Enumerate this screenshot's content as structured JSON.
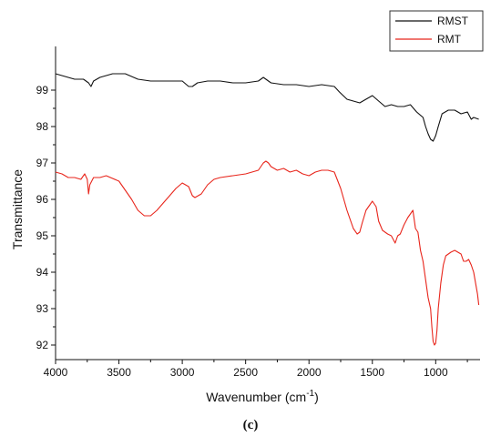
{
  "chart_data": {
    "type": "line",
    "title": "",
    "xlabel": "Wavenumber (cm",
    "xlabel_sup": "-1",
    "xlabel_close": ")",
    "ylabel": "Transmittance",
    "panel_label": "(c)",
    "xlim": [
      4000,
      650
    ],
    "x_reversed": true,
    "ylim": [
      91.6,
      100.2
    ],
    "x_ticks": [
      4000,
      3500,
      3000,
      2500,
      2000,
      1500,
      1000
    ],
    "y_ticks": [
      92,
      93,
      94,
      95,
      96,
      97,
      98,
      99
    ],
    "grid": false,
    "legend_position": "top-right",
    "series": [
      {
        "name": "RMST",
        "color": "#111111",
        "x": [
          4000,
          3900,
          3850,
          3780,
          3740,
          3720,
          3700,
          3650,
          3550,
          3450,
          3350,
          3250,
          3100,
          3000,
          2950,
          2920,
          2880,
          2800,
          2700,
          2600,
          2500,
          2400,
          2360,
          2340,
          2300,
          2200,
          2100,
          2000,
          1900,
          1800,
          1760,
          1700,
          1650,
          1600,
          1550,
          1500,
          1450,
          1400,
          1350,
          1300,
          1250,
          1200,
          1150,
          1100,
          1080,
          1060,
          1040,
          1020,
          1000,
          980,
          950,
          900,
          850,
          800,
          750,
          720,
          700,
          660
        ],
        "y": [
          99.45,
          99.35,
          99.3,
          99.3,
          99.2,
          99.1,
          99.25,
          99.35,
          99.45,
          99.45,
          99.3,
          99.25,
          99.25,
          99.25,
          99.1,
          99.1,
          99.2,
          99.25,
          99.25,
          99.2,
          99.2,
          99.25,
          99.35,
          99.3,
          99.2,
          99.15,
          99.15,
          99.1,
          99.15,
          99.1,
          98.95,
          98.75,
          98.7,
          98.65,
          98.75,
          98.85,
          98.7,
          98.55,
          98.6,
          98.55,
          98.55,
          98.6,
          98.4,
          98.25,
          98.0,
          97.8,
          97.65,
          97.6,
          97.75,
          98.0,
          98.35,
          98.45,
          98.45,
          98.35,
          98.4,
          98.2,
          98.25,
          98.2
        ]
      },
      {
        "name": "RMT",
        "color": "#e8261c",
        "x": [
          4000,
          3950,
          3900,
          3850,
          3800,
          3770,
          3750,
          3740,
          3730,
          3700,
          3650,
          3600,
          3500,
          3400,
          3350,
          3300,
          3250,
          3200,
          3150,
          3100,
          3050,
          3000,
          2950,
          2920,
          2900,
          2850,
          2800,
          2750,
          2700,
          2600,
          2500,
          2400,
          2360,
          2340,
          2320,
          2300,
          2250,
          2200,
          2150,
          2100,
          2050,
          2000,
          1950,
          1900,
          1850,
          1800,
          1750,
          1700,
          1650,
          1620,
          1600,
          1580,
          1550,
          1500,
          1470,
          1450,
          1420,
          1400,
          1380,
          1350,
          1320,
          1300,
          1280,
          1250,
          1220,
          1200,
          1180,
          1160,
          1140,
          1120,
          1100,
          1080,
          1060,
          1040,
          1030,
          1020,
          1010,
          1000,
          990,
          980,
          960,
          940,
          920,
          900,
          880,
          850,
          800,
          780,
          760,
          740,
          720,
          700,
          690,
          680,
          670,
          660
        ],
        "y": [
          96.75,
          96.7,
          96.6,
          96.6,
          96.55,
          96.7,
          96.55,
          96.15,
          96.4,
          96.6,
          96.6,
          96.65,
          96.5,
          96.0,
          95.7,
          95.55,
          95.55,
          95.7,
          95.9,
          96.1,
          96.3,
          96.45,
          96.35,
          96.1,
          96.05,
          96.15,
          96.4,
          96.55,
          96.6,
          96.65,
          96.7,
          96.8,
          97.0,
          97.05,
          97.0,
          96.9,
          96.8,
          96.85,
          96.75,
          96.8,
          96.7,
          96.65,
          96.75,
          96.8,
          96.8,
          96.75,
          96.3,
          95.7,
          95.2,
          95.05,
          95.1,
          95.35,
          95.7,
          95.95,
          95.8,
          95.4,
          95.15,
          95.1,
          95.05,
          95.0,
          94.8,
          95.0,
          95.05,
          95.3,
          95.5,
          95.6,
          95.7,
          95.2,
          95.1,
          94.6,
          94.3,
          93.8,
          93.3,
          93.0,
          92.5,
          92.1,
          92.0,
          92.05,
          92.4,
          93.0,
          93.7,
          94.2,
          94.45,
          94.5,
          94.55,
          94.6,
          94.5,
          94.3,
          94.3,
          94.35,
          94.2,
          94.0,
          93.8,
          93.6,
          93.4,
          93.1
        ]
      }
    ]
  }
}
